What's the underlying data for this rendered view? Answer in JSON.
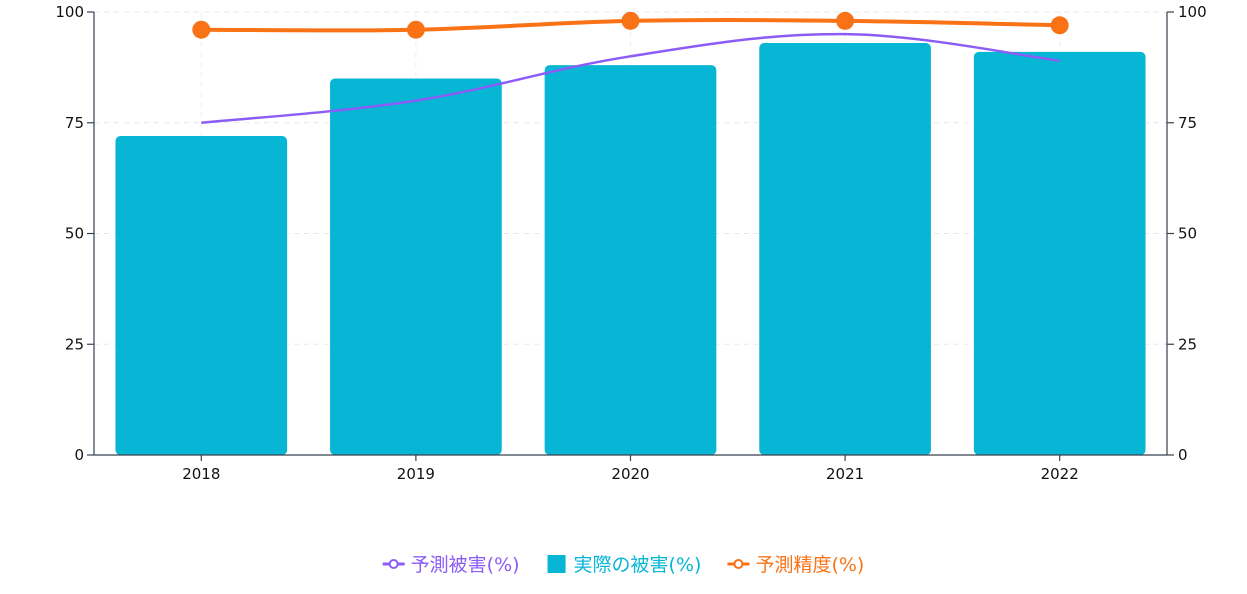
{
  "chart_data": {
    "type": "bar",
    "categories": [
      "2018",
      "2019",
      "2020",
      "2021",
      "2022"
    ],
    "series": [
      {
        "name": "予測被害(%)",
        "type": "line",
        "axis": "left",
        "color": "#8b5cf6",
        "values": [
          75,
          80,
          90,
          95,
          89
        ]
      },
      {
        "name": "実際の被害(%)",
        "type": "bar",
        "axis": "left",
        "color": "#06b6d4",
        "values": [
          72,
          85,
          88,
          93,
          91
        ]
      },
      {
        "name": "予測精度(%)",
        "type": "line",
        "axis": "right",
        "color": "#f97316",
        "values": [
          96,
          96,
          98,
          98,
          97
        ]
      }
    ],
    "ylim": [
      0,
      100
    ],
    "y2lim": [
      0,
      100
    ],
    "yticks": [
      0,
      25,
      50,
      75,
      100
    ],
    "y2ticks": [
      0,
      25,
      50,
      75,
      100
    ],
    "grid": true,
    "legend": "bottom"
  }
}
